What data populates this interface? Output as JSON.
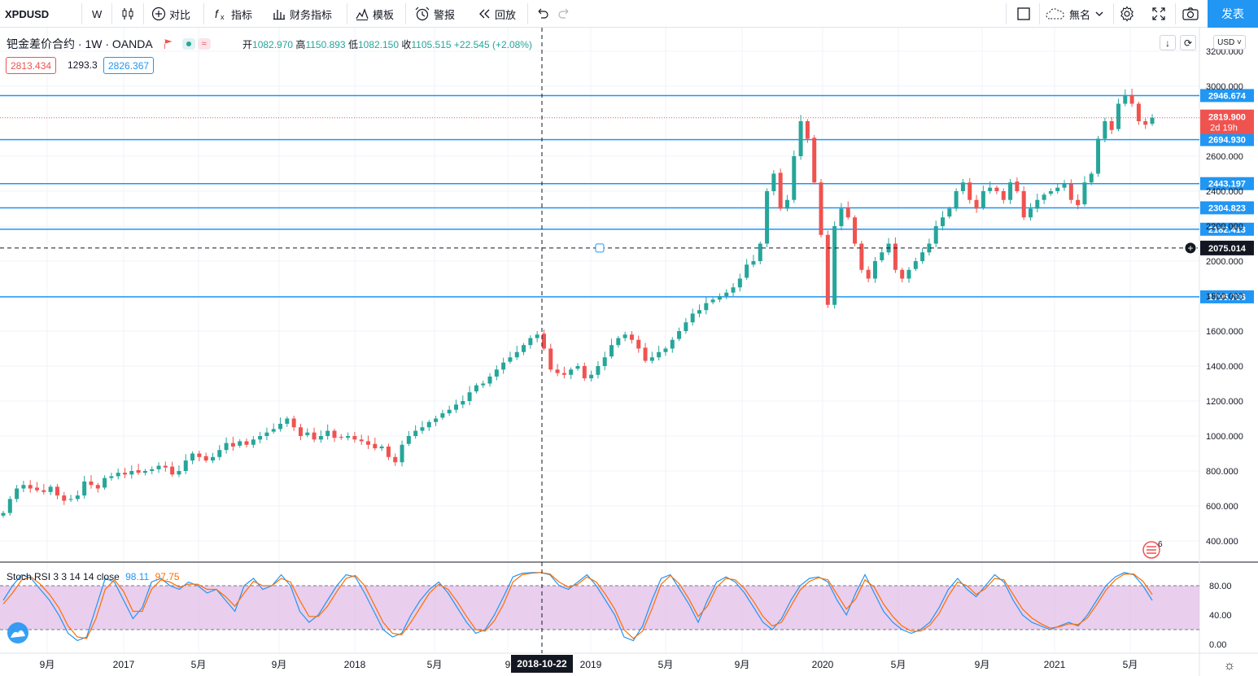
{
  "toolbar": {
    "symbol": "XPDUSD",
    "interval": "W",
    "compare": "对比",
    "indicators": "指标",
    "financials": "财务指标",
    "templates": "模板",
    "alert": "警报",
    "replay": "回放",
    "layout_name": "無名",
    "publish": "发表"
  },
  "legend": {
    "title": "钯金差价合约 · 1W · OANDA",
    "open_label": "开",
    "open": "1082.970",
    "high_label": "高",
    "high": "1150.893",
    "low_label": "低",
    "low": "1082.150",
    "close_label": "收",
    "close": "1105.515",
    "change": "+22.545 (+2.08%)",
    "bid": "2813.434",
    "spread": "1293.3",
    "ask": "2826.367"
  },
  "axis": {
    "currency": "USD",
    "price_ticks": [
      "400.000",
      "600.000",
      "800.000",
      "1000.000",
      "1200.000",
      "1400.000",
      "1600.000",
      "1800.000",
      "2000.000",
      "2200.000",
      "2400.000",
      "2600.000",
      "3000.000",
      "3200.000"
    ],
    "time_ticks": [
      "9月",
      "2017",
      "5月",
      "9月",
      "2018",
      "5月",
      "9",
      "2019",
      "5月",
      "9月",
      "2020",
      "5月",
      "9月",
      "2021",
      "5月"
    ],
    "crosshair_date": "2018-10-22",
    "current_price": "2819.900",
    "countdown": "2d 19h",
    "crosshair_price": "2075.014",
    "stoch_ticks": [
      "80.00",
      "40.00",
      "0.00"
    ]
  },
  "levels": [
    "2946.674",
    "2694.930",
    "2443.197",
    "2304.823",
    "2182.413",
    "1795.786"
  ],
  "stoch": {
    "label": "Stoch RSI 3 3 14 14 close",
    "k": "98.11",
    "d": "97.75"
  },
  "badge_count": "6",
  "colors": {
    "up": "#26a69a",
    "down": "#ef5350",
    "level": "#2196f3",
    "stoch_k": "#2196f3",
    "stoch_d": "#ff6d00",
    "stoch_band": "#e1bee7"
  },
  "chart_data": [
    {
      "type": "candlestick",
      "title": "钯金差价合约 · 1W · OANDA",
      "x_range": [
        "2016-08",
        "2021-07"
      ],
      "ylim": [
        300,
        3250
      ],
      "grid": true,
      "y": [
        560,
        640,
        700,
        720,
        700,
        690,
        680,
        710,
        660,
        630,
        640,
        660,
        740,
        720,
        700,
        760,
        770,
        790,
        780,
        800,
        790,
        800,
        810,
        830,
        820,
        780,
        800,
        860,
        900,
        880,
        860,
        880,
        920,
        960,
        940,
        970,
        950,
        980,
        1000,
        1020,
        1040,
        1070,
        1100,
        1050,
        1000,
        1020,
        980,
        1000,
        1030,
        990,
        990,
        1000,
        980,
        970,
        950,
        930,
        940,
        880,
        850,
        950,
        1000,
        1030,
        1050,
        1080,
        1100,
        1130,
        1150,
        1180,
        1200,
        1250,
        1290,
        1300,
        1340,
        1380,
        1420,
        1450,
        1480,
        1520,
        1560,
        1580,
        1500,
        1380,
        1360,
        1350,
        1380,
        1400,
        1330,
        1350,
        1400,
        1450,
        1520,
        1560,
        1580,
        1550,
        1500,
        1430,
        1450,
        1480,
        1500,
        1550,
        1600,
        1650,
        1700,
        1720,
        1760,
        1780,
        1800,
        1820,
        1850,
        1900,
        1980,
        2000,
        2100,
        2400,
        2500,
        2300,
        2350,
        2600,
        2800,
        2700,
        2450,
        2150,
        1750,
        2200,
        2300,
        2250,
        2100,
        1950,
        1900,
        2000,
        2050,
        2100,
        1950,
        1900,
        1950,
        2000,
        2050,
        2100,
        2200,
        2250,
        2300,
        2400,
        2450,
        2350,
        2300,
        2400,
        2420,
        2400,
        2350,
        2450,
        2400,
        2250,
        2300,
        2350,
        2380,
        2400,
        2420,
        2440,
        2350,
        2320,
        2450,
        2500,
        2700,
        2800,
        2750,
        2900,
        2950,
        2900,
        2800,
        2780,
        2819.9
      ]
    },
    {
      "type": "line",
      "title": "Stoch RSI 3 3 14 14 close",
      "ylim": [
        0,
        100
      ],
      "bands": [
        20,
        80
      ],
      "series": [
        {
          "name": "K",
          "values": [
            60,
            80,
            95,
            90,
            75,
            60,
            40,
            15,
            5,
            10,
            50,
            90,
            85,
            60,
            35,
            50,
            85,
            90,
            80,
            75,
            85,
            80,
            70,
            75,
            60,
            45,
            80,
            90,
            75,
            80,
            95,
            80,
            45,
            30,
            40,
            60,
            80,
            95,
            92,
            70,
            45,
            20,
            10,
            15,
            40,
            60,
            75,
            85,
            70,
            50,
            30,
            15,
            20,
            40,
            65,
            92,
            97,
            98,
            98,
            95,
            80,
            75,
            85,
            95,
            80,
            60,
            40,
            10,
            5,
            25,
            60,
            90,
            95,
            75,
            55,
            30,
            60,
            85,
            92,
            85,
            70,
            50,
            30,
            20,
            35,
            60,
            80,
            90,
            92,
            85,
            60,
            40,
            70,
            95,
            70,
            45,
            30,
            20,
            15,
            20,
            30,
            50,
            75,
            90,
            75,
            65,
            80,
            95,
            85,
            60,
            40,
            30,
            25,
            20,
            25,
            30,
            25,
            40,
            60,
            80,
            92,
            98,
            95,
            80,
            60
          ]
        },
        {
          "name": "D",
          "values": [
            55,
            70,
            88,
            92,
            82,
            68,
            50,
            25,
            10,
            8,
            35,
            75,
            88,
            72,
            45,
            45,
            75,
            88,
            85,
            78,
            82,
            82,
            75,
            75,
            65,
            52,
            70,
            86,
            80,
            80,
            90,
            85,
            60,
            38,
            38,
            52,
            72,
            90,
            94,
            80,
            55,
            30,
            15,
            13,
            30,
            50,
            70,
            82,
            75,
            58,
            38,
            20,
            18,
            32,
            55,
            85,
            95,
            97,
            98,
            96,
            85,
            78,
            82,
            92,
            85,
            68,
            48,
            20,
            8,
            18,
            48,
            82,
            94,
            82,
            62,
            38,
            52,
            78,
            90,
            88,
            76,
            58,
            38,
            25,
            30,
            52,
            74,
            86,
            91,
            88,
            68,
            48,
            62,
            88,
            78,
            55,
            38,
            25,
            18,
            18,
            26,
            42,
            66,
            85,
            80,
            68,
            76,
            90,
            88,
            68,
            48,
            36,
            28,
            22,
            24,
            28,
            27,
            36,
            54,
            74,
            88,
            96,
            96,
            86,
            68
          ]
        }
      ]
    }
  ]
}
